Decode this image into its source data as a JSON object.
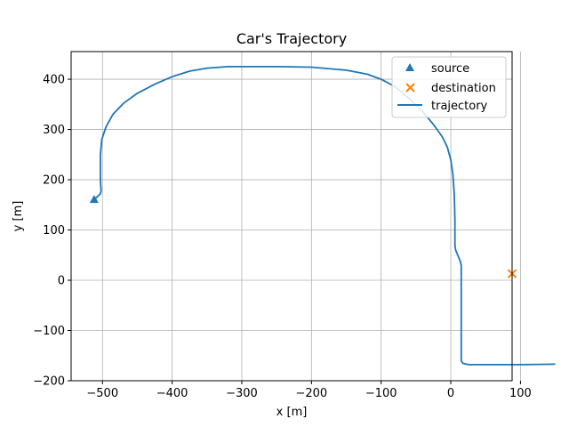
{
  "chart_data": {
    "type": "line",
    "title": "Car's Trajectory",
    "xlabel": "x [m]",
    "ylabel": "y [m]",
    "xlim": [
      -545,
      88
    ],
    "ylim": [
      -200,
      455
    ],
    "xticks": [
      -500,
      -400,
      -300,
      -200,
      -100,
      0,
      100
    ],
    "yticks": [
      -200,
      -100,
      0,
      100,
      200,
      300,
      400
    ],
    "grid": true,
    "legend_position": "top-right",
    "series": [
      {
        "name": "source",
        "kind": "marker",
        "marker": "triangle",
        "color": "#1f77b4",
        "x": [
          -512
        ],
        "y": [
          160
        ]
      },
      {
        "name": "destination",
        "kind": "marker",
        "marker": "x",
        "color": "#ff7f0e",
        "x": [
          88
        ],
        "y": [
          13
        ]
      },
      {
        "name": "trajectory",
        "kind": "line",
        "color": "#1f77b4",
        "x": [
          -510,
          -503,
          -502,
          -503,
          -503,
          -501,
          -495,
          -485,
          -470,
          -450,
          -425,
          -400,
          -375,
          -350,
          -320,
          -290,
          -250,
          -200,
          -150,
          -120,
          -100,
          -80,
          -60,
          -40,
          -25,
          -12,
          -5,
          0,
          3,
          5,
          6,
          6,
          7,
          10,
          13,
          15,
          15,
          15,
          15,
          17,
          25,
          50,
          100,
          150
        ],
        "y": [
          163,
          172,
          178,
          200,
          250,
          280,
          305,
          330,
          352,
          372,
          390,
          405,
          416,
          422,
          425,
          425,
          425,
          424,
          418,
          410,
          400,
          385,
          362,
          335,
          310,
          285,
          265,
          240,
          210,
          170,
          120,
          70,
          60,
          50,
          40,
          30,
          0,
          -50,
          -160,
          -165,
          -168,
          -168,
          -168,
          -167
        ]
      }
    ]
  }
}
